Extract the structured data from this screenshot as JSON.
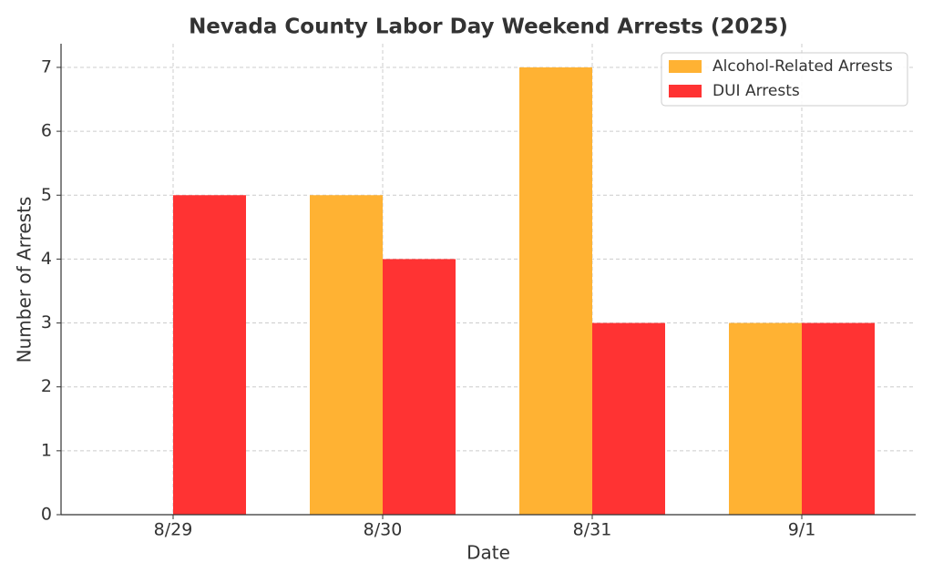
{
  "chart_data": {
    "type": "bar",
    "title": "Nevada County Labor Day Weekend Arrests (2025)",
    "x_label": "Date",
    "y_label": "Number of Arrests",
    "categories": [
      "8/29",
      "8/30",
      "8/31",
      "9/1"
    ],
    "series": [
      {
        "name": "Alcohol-Related Arrests",
        "color": "#ffb233",
        "values": [
          0,
          5,
          7,
          3
        ]
      },
      {
        "name": "DUI Arrests",
        "color": "#ff3333",
        "values": [
          5,
          4,
          3,
          3
        ]
      }
    ],
    "ylim": [
      0,
      7.37
    ],
    "yticks": [
      0,
      1,
      2,
      3,
      4,
      5,
      6,
      7
    ],
    "grid": true,
    "legend": "upper right"
  }
}
